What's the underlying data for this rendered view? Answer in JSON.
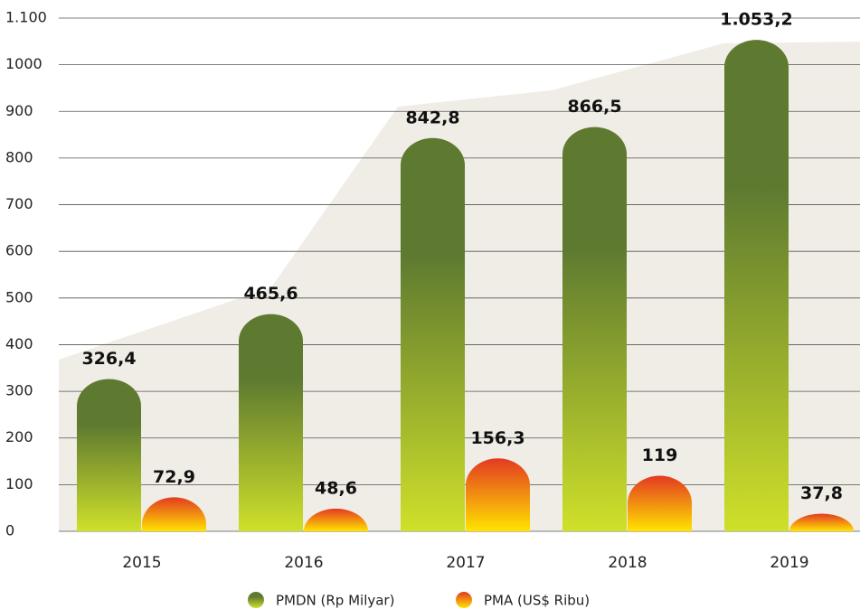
{
  "chart_data": {
    "type": "bar",
    "categories": [
      "2015",
      "2016",
      "2017",
      "2018",
      "2019"
    ],
    "series": [
      {
        "name": "PMDN (Rp Milyar)",
        "color": "#5e7a30",
        "values": [
          326.4,
          465.6,
          842.8,
          866.5,
          1053.2
        ],
        "value_labels": [
          "326,4",
          "465,6",
          "842,8",
          "866,5",
          "1.053,2"
        ]
      },
      {
        "name": "PMA (US$ Ribu)",
        "color": "#e33a22",
        "values": [
          72.9,
          48.6,
          156.3,
          119,
          37.8
        ],
        "value_labels": [
          "72,9",
          "48,6",
          "156,3",
          "119",
          "37,8"
        ]
      }
    ],
    "ylim": [
      0,
      1100
    ],
    "yticks": [
      0,
      100,
      200,
      300,
      400,
      500,
      600,
      700,
      800,
      900,
      1000,
      {
        "value": 1100,
        "label": "1.100"
      }
    ],
    "grid": true
  }
}
